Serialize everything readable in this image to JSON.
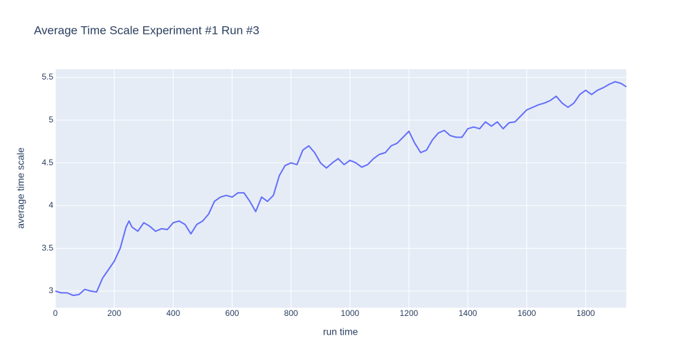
{
  "chart_data": {
    "type": "line",
    "title": "Average Time Scale Experiment #1 Run #3",
    "x_label": "run time",
    "y_label": "average time scale",
    "x": [
      0,
      20,
      40,
      60,
      80,
      100,
      120,
      140,
      160,
      180,
      200,
      220,
      240,
      250,
      260,
      280,
      300,
      320,
      340,
      360,
      380,
      400,
      420,
      440,
      460,
      480,
      500,
      520,
      540,
      560,
      580,
      600,
      620,
      640,
      660,
      680,
      700,
      720,
      740,
      760,
      780,
      800,
      820,
      840,
      860,
      880,
      900,
      920,
      940,
      960,
      980,
      1000,
      1020,
      1040,
      1060,
      1080,
      1100,
      1120,
      1140,
      1160,
      1180,
      1200,
      1220,
      1240,
      1260,
      1280,
      1300,
      1320,
      1340,
      1360,
      1380,
      1400,
      1420,
      1440,
      1460,
      1480,
      1500,
      1520,
      1540,
      1560,
      1580,
      1600,
      1620,
      1640,
      1660,
      1680,
      1700,
      1720,
      1740,
      1760,
      1780,
      1800,
      1820,
      1840,
      1860,
      1880,
      1900,
      1920,
      1938
    ],
    "series": [
      {
        "name": "average time scale",
        "color": "#636efa",
        "values": [
          3.0,
          2.98,
          2.98,
          2.95,
          2.96,
          3.02,
          3.0,
          2.99,
          3.15,
          3.25,
          3.35,
          3.5,
          3.75,
          3.82,
          3.75,
          3.7,
          3.8,
          3.76,
          3.7,
          3.73,
          3.72,
          3.8,
          3.82,
          3.78,
          3.67,
          3.78,
          3.82,
          3.9,
          4.05,
          4.1,
          4.12,
          4.1,
          4.15,
          4.15,
          4.05,
          3.93,
          4.1,
          4.05,
          4.12,
          4.35,
          4.47,
          4.5,
          4.48,
          4.65,
          4.7,
          4.62,
          4.5,
          4.44,
          4.5,
          4.55,
          4.48,
          4.53,
          4.5,
          4.45,
          4.48,
          4.55,
          4.6,
          4.62,
          4.7,
          4.73,
          4.8,
          4.87,
          4.73,
          4.62,
          4.65,
          4.77,
          4.85,
          4.88,
          4.82,
          4.8,
          4.8,
          4.9,
          4.92,
          4.9,
          4.98,
          4.93,
          4.98,
          4.9,
          4.97,
          4.98,
          5.05,
          5.12,
          5.15,
          5.18,
          5.2,
          5.23,
          5.28,
          5.2,
          5.15,
          5.2,
          5.3,
          5.35,
          5.3,
          5.35,
          5.38,
          5.42,
          5.45,
          5.43,
          5.39
        ]
      }
    ],
    "xlim": [
      0,
      1938
    ],
    "ylim": [
      2.806,
      5.597
    ],
    "xticks": [
      0,
      200,
      400,
      600,
      800,
      1000,
      1200,
      1400,
      1600,
      1800
    ],
    "yticks": [
      3,
      3.5,
      4,
      4.5,
      5,
      5.5
    ],
    "grid": true
  }
}
